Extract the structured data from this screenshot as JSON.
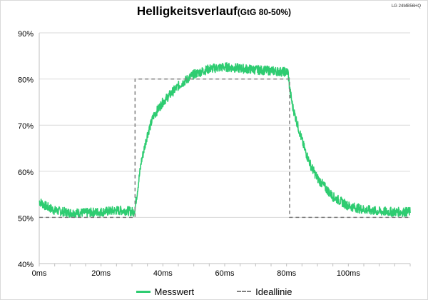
{
  "corner_label": "LG 24MB56HQ",
  "chart_data": {
    "type": "line",
    "title": "Helligkeitsverlauf",
    "subtitle": "(GtG 80-50%)",
    "xlabel": "",
    "ylabel": "",
    "xlim": [
      0,
      120
    ],
    "ylim": [
      40,
      90
    ],
    "x_ticks": [
      0,
      20,
      40,
      60,
      80,
      100
    ],
    "x_tick_labels": [
      "0ms",
      "20ms",
      "40ms",
      "60ms",
      "80ms",
      "100ms"
    ],
    "y_ticks": [
      40,
      50,
      60,
      70,
      80,
      90
    ],
    "y_tick_labels": [
      "40%",
      "50%",
      "60%",
      "70%",
      "80%",
      "90%"
    ],
    "grid": "horizontal",
    "legend_position": "bottom",
    "series": [
      {
        "name": "Messwert",
        "color": "#2ecc71",
        "x": [
          0,
          2,
          5,
          10,
          15,
          20,
          25,
          28,
          30.5,
          31,
          32,
          33,
          35,
          37,
          40,
          45,
          50,
          55,
          60,
          65,
          70,
          75,
          78,
          80.5,
          81,
          82,
          84,
          86,
          88,
          90,
          95,
          100,
          105,
          110,
          115,
          120
        ],
        "y": [
          53.5,
          52.5,
          51.5,
          51,
          51,
          51.2,
          51.5,
          51.5,
          51.2,
          52,
          57,
          62,
          68,
          72,
          75,
          78.5,
          81,
          82.2,
          82.6,
          82.3,
          82,
          81.8,
          81.6,
          81.5,
          78,
          74,
          69,
          64.5,
          61,
          58.5,
          54.5,
          52.5,
          51.7,
          51.3,
          51.2,
          51.2
        ]
      },
      {
        "name": "Ideallinie",
        "color": "#7f7f7f",
        "dash": true,
        "x": [
          0,
          31,
          31,
          81,
          81,
          120
        ],
        "y": [
          50,
          50,
          80,
          80,
          50,
          50
        ]
      }
    ]
  }
}
